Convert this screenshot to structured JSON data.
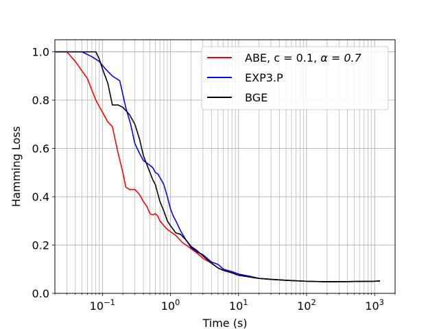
{
  "chart_data": {
    "type": "line",
    "xlabel": "Time (s)",
    "ylabel": "Hamming Loss",
    "xscale": "log",
    "xlim": [
      0.02,
      2000
    ],
    "ylim": [
      0.0,
      1.05
    ],
    "grid": true,
    "legend_position": "top-right",
    "x_tick_labels": [
      {
        "value": 0.1,
        "base": "10",
        "exp": "−1"
      },
      {
        "value": 1,
        "base": "10",
        "exp": "0"
      },
      {
        "value": 10,
        "base": "10",
        "exp": "1"
      },
      {
        "value": 100,
        "base": "10",
        "exp": "2"
      },
      {
        "value": 1000,
        "base": "10",
        "exp": "3"
      }
    ],
    "y_ticks": [
      {
        "value": 0.0,
        "label": "0.0"
      },
      {
        "value": 0.2,
        "label": "0.2"
      },
      {
        "value": 0.4,
        "label": "0.4"
      },
      {
        "value": 0.6,
        "label": "0.6"
      },
      {
        "value": 0.8,
        "label": "0.8"
      },
      {
        "value": 1.0,
        "label": "1.0"
      }
    ],
    "series": [
      {
        "name": "ABE, c = 0.1, α = 0.7",
        "legend_plain": "ABE, c = 0.1, ",
        "legend_math": "α = 0.7",
        "color": "#ff0000",
        "x": [
          0.02,
          0.03,
          0.04,
          0.06,
          0.08,
          0.1,
          0.12,
          0.14,
          0.17,
          0.2,
          0.22,
          0.25,
          0.3,
          0.35,
          0.4,
          0.45,
          0.5,
          0.55,
          0.6,
          0.65,
          0.7,
          0.75,
          0.8,
          0.9,
          1.0,
          1.2,
          1.5,
          1.8,
          2.0,
          2.5,
          3.0,
          4.0,
          5.0,
          6.0,
          8.0,
          10,
          15,
          20,
          30,
          50,
          100,
          200,
          500,
          1000,
          1200
        ],
        "y": [
          1.0,
          1.0,
          0.96,
          0.89,
          0.8,
          0.75,
          0.71,
          0.69,
          0.58,
          0.5,
          0.44,
          0.43,
          0.43,
          0.41,
          0.38,
          0.36,
          0.33,
          0.325,
          0.33,
          0.32,
          0.3,
          0.29,
          0.28,
          0.265,
          0.255,
          0.24,
          0.21,
          0.195,
          0.185,
          0.165,
          0.145,
          0.125,
          0.105,
          0.095,
          0.085,
          0.075,
          0.067,
          0.062,
          0.058,
          0.054,
          0.05,
          0.048,
          0.049,
          0.05,
          0.052
        ]
      },
      {
        "name": "EXP3.P",
        "legend_plain": "EXP3.P",
        "legend_math": "",
        "color": "#0000ff",
        "x": [
          0.02,
          0.03,
          0.05,
          0.07,
          0.09,
          0.11,
          0.14,
          0.18,
          0.22,
          0.26,
          0.3,
          0.35,
          0.4,
          0.5,
          0.55,
          0.6,
          0.65,
          0.7,
          0.8,
          0.9,
          1.0,
          1.1,
          1.2,
          1.4,
          1.7,
          2.0,
          2.5,
          3.0,
          4.0,
          5.0,
          6.0,
          8.0,
          10,
          15,
          20,
          30,
          50,
          100,
          200,
          500,
          1000,
          1200
        ],
        "y": [
          1.0,
          1.0,
          1.0,
          0.98,
          0.96,
          0.93,
          0.9,
          0.88,
          0.77,
          0.7,
          0.62,
          0.58,
          0.55,
          0.53,
          0.52,
          0.5,
          0.495,
          0.48,
          0.45,
          0.4,
          0.35,
          0.32,
          0.3,
          0.26,
          0.22,
          0.19,
          0.17,
          0.16,
          0.13,
          0.12,
          0.1,
          0.09,
          0.08,
          0.07,
          0.062,
          0.058,
          0.054,
          0.05,
          0.048,
          0.049,
          0.05,
          0.051
        ]
      },
      {
        "name": "BGE",
        "legend_plain": "BGE",
        "legend_math": "",
        "color": "#000000",
        "x": [
          0.02,
          0.03,
          0.05,
          0.06,
          0.07,
          0.08,
          0.09,
          0.1,
          0.12,
          0.14,
          0.17,
          0.2,
          0.25,
          0.3,
          0.35,
          0.4,
          0.5,
          0.55,
          0.6,
          0.7,
          0.75,
          0.8,
          0.9,
          1.0,
          1.2,
          1.4,
          1.7,
          2.0,
          2.5,
          3.0,
          4.0,
          5.0,
          6.0,
          8.0,
          10,
          15,
          20,
          30,
          50,
          100,
          200,
          500,
          1000,
          1200
        ],
        "y": [
          1.0,
          1.0,
          1.0,
          1.0,
          1.0,
          1.0,
          0.97,
          0.93,
          0.87,
          0.78,
          0.78,
          0.77,
          0.74,
          0.7,
          0.64,
          0.57,
          0.5,
          0.47,
          0.45,
          0.38,
          0.36,
          0.34,
          0.3,
          0.28,
          0.25,
          0.245,
          0.22,
          0.195,
          0.175,
          0.155,
          0.125,
          0.105,
          0.095,
          0.085,
          0.075,
          0.067,
          0.062,
          0.058,
          0.054,
          0.05,
          0.048,
          0.049,
          0.05,
          0.052
        ]
      }
    ]
  }
}
